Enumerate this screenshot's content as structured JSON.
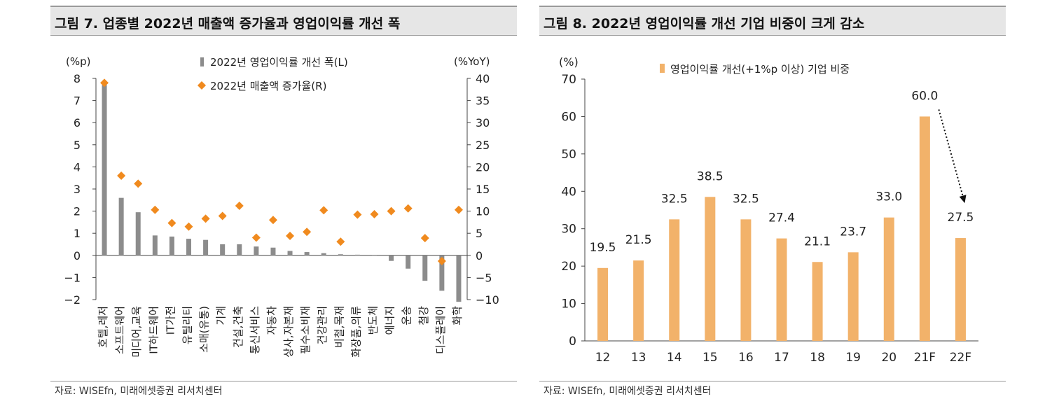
{
  "colors": {
    "bar_gray": "#8c8c8c",
    "diamond_orange": "#f08a1e",
    "bar_orange": "#f2b26a",
    "axis": "#444444"
  },
  "chart_data": [
    {
      "type": "bar",
      "title": "그림 7. 업종별 2022년 매출액 증가율과 영업이익률 개선 폭",
      "left_unit": "(%p)",
      "right_unit": "(%YoY)",
      "ylim_left": [
        -2,
        8
      ],
      "ylim_right": [
        -10,
        40
      ],
      "yticks_left": [
        "8",
        "7",
        "6",
        "5",
        "4",
        "3",
        "2",
        "1",
        "0",
        "−1",
        "−2"
      ],
      "yticks_right": [
        "40",
        "35",
        "30",
        "25",
        "20",
        "15",
        "10",
        "5",
        "0",
        "−5",
        "−10"
      ],
      "legend": [
        "2022년 영업이익률 개선 폭(L)",
        "2022년 매출액 증가율(R)"
      ],
      "legend_position": "top-center",
      "categories": [
        "호텔,레저",
        "소프트웨어",
        "미디어,교육",
        "IT하드웨어",
        "IT가전",
        "유틸리티",
        "소매(유통)",
        "기계",
        "건설,건축",
        "통신서비스",
        "자동차",
        "상사,자본재",
        "필수소비재",
        "건강관리",
        "비철,목재",
        "화장품,의류",
        "반도체",
        "에너지",
        "운송",
        "철강",
        "디스플레이",
        "화학"
      ],
      "series": [
        {
          "name": "2022년 영업이익률 개선 폭(L)",
          "type": "bar",
          "axis": "left",
          "values": [
            7.7,
            2.6,
            1.95,
            0.9,
            0.85,
            0.75,
            0.7,
            0.5,
            0.5,
            0.4,
            0.35,
            0.2,
            0.15,
            0.1,
            0.05,
            0.03,
            0.02,
            -0.25,
            -0.6,
            -1.15,
            -1.6,
            -2.1
          ]
        },
        {
          "name": "2022년 매출액 증가율(R)",
          "type": "scatter",
          "axis": "right",
          "values": [
            39,
            18,
            16.2,
            10.3,
            7.3,
            6.5,
            8.3,
            8.9,
            11.2,
            4,
            8,
            4.4,
            5.3,
            10.2,
            3.1,
            9.2,
            9.3,
            10,
            10.6,
            3.9,
            -1.3,
            10.3
          ]
        }
      ],
      "source": "자료: WISEfn, 미래에셋증권 리서치센터"
    },
    {
      "type": "bar",
      "title": "그림 8. 2022년 영업이익률 개선 기업 비중이 크게 감소",
      "y_unit": "(%)",
      "ylim": [
        0,
        70
      ],
      "yticks": [
        "70",
        "60",
        "50",
        "40",
        "30",
        "20",
        "10",
        "0"
      ],
      "legend": [
        "영업이익률 개선(+1%p 이상) 기업 비중"
      ],
      "legend_position": "top-center",
      "categories": [
        "12",
        "13",
        "14",
        "15",
        "16",
        "17",
        "18",
        "19",
        "20",
        "21F",
        "22F"
      ],
      "values": [
        19.5,
        21.5,
        32.5,
        38.5,
        32.5,
        27.4,
        21.1,
        23.7,
        33.0,
        60.0,
        27.5
      ],
      "data_labels": [
        "19.5",
        "21.5",
        "32.5",
        "38.5",
        "32.5",
        "27.4",
        "21.1",
        "23.7",
        "33.0",
        "60.0",
        "27.5"
      ],
      "source": "자료: WISEfn, 미래에셋증권 리서치센터"
    }
  ]
}
